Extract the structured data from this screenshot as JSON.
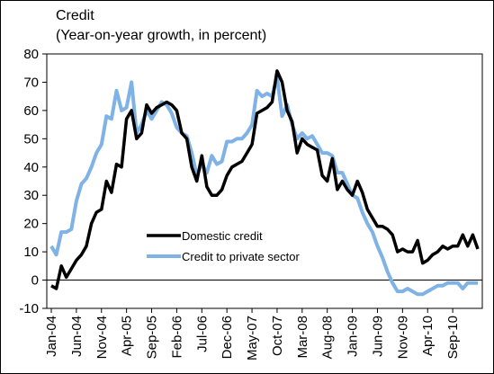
{
  "chart_data": {
    "type": "line",
    "title": "Credit",
    "subtitle": "(Year-on-year growth, in percent)",
    "ylim": [
      -10,
      80
    ],
    "y_ticks": [
      -10,
      0,
      10,
      20,
      30,
      40,
      50,
      60,
      70,
      80
    ],
    "x_tick_labels": [
      "Jan-04",
      "Jun-04",
      "Nov-04",
      "Apr-05",
      "Sep-05",
      "Feb-06",
      "Jul-06",
      "Dec-06",
      "May-07",
      "Oct-07",
      "Mar-08",
      "Aug-08",
      "Jan-09",
      "Jun-09",
      "Nov-09",
      "Apr-10",
      "Sep-10"
    ],
    "x_start": "Jan-04",
    "x_end": "Dec-10",
    "grid": false,
    "legend_position": "lower-left-center",
    "series": [
      {
        "name": "Domestic credit",
        "color": "#000000",
        "values": [
          -2,
          -3,
          5,
          1,
          4,
          7,
          9,
          12,
          20,
          24,
          25,
          35,
          31,
          41,
          40,
          57,
          60,
          50,
          52,
          62,
          59,
          61,
          62,
          63,
          62,
          60,
          52,
          50,
          40,
          35,
          44,
          33,
          30,
          30,
          32,
          37,
          40,
          41,
          42,
          45,
          48,
          59,
          60,
          61,
          63,
          74,
          70,
          60,
          56,
          45,
          50,
          48,
          47,
          46,
          37,
          35,
          43,
          32,
          35,
          32,
          30,
          35,
          31,
          25,
          22,
          19,
          19,
          18,
          16,
          10,
          11,
          10,
          10,
          14,
          6,
          7,
          9,
          10,
          12,
          11,
          12,
          12,
          16,
          12,
          16,
          11
        ]
      },
      {
        "name": "Credit to private sector",
        "color": "#7fb2e5",
        "values": [
          12,
          9,
          17,
          17,
          18,
          28,
          34,
          36,
          40,
          45,
          48,
          58,
          57,
          67,
          60,
          61,
          70,
          52,
          55,
          60,
          57,
          60,
          63,
          62,
          59,
          54,
          52,
          51,
          45,
          37,
          41,
          38,
          44,
          41,
          42,
          49,
          49,
          50,
          50,
          52,
          55,
          67,
          65,
          66,
          65,
          72,
          58,
          62,
          55,
          50,
          52,
          50,
          51,
          48,
          45,
          45,
          44,
          38,
          38,
          34,
          30,
          29,
          24,
          20,
          17,
          12,
          8,
          3,
          -1,
          -4,
          -4,
          -3,
          -4,
          -5,
          -5,
          -4,
          -3,
          -2,
          -2,
          -1,
          -1,
          -1,
          -3,
          -1,
          -1,
          -1
        ]
      }
    ]
  }
}
